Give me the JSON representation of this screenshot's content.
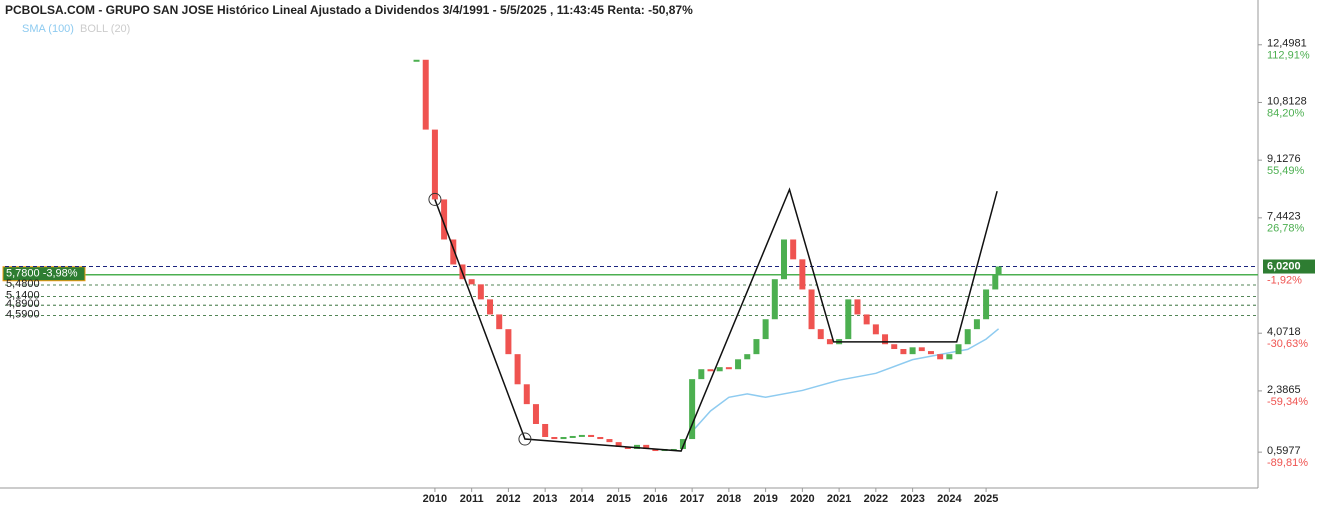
{
  "chart_data": {
    "type": "candlestick",
    "title": "PCBOLSA.COM - GRUPO SAN JOSE Histórico Lineal Ajustado a Dividendos 3/4/1991 - 5/5/2025 , 11:43:45 Renta: -50,87%",
    "indicators": [
      "SMA (100)",
      "BOLL (20)"
    ],
    "xlim": [
      1998.3,
      2032.4
    ],
    "xticks": [
      2010,
      2011,
      2012,
      2013,
      2014,
      2015,
      2016,
      2017,
      2018,
      2019,
      2020,
      2021,
      2022,
      2023,
      2024,
      2025
    ],
    "ylim": [
      -0.45,
      13.66
    ],
    "yticks": [
      {
        "value": 12.4981,
        "label": "12,4981"
      },
      {
        "value": 10.8128,
        "label": "10,8128"
      },
      {
        "value": 9.1276,
        "label": "9,1276"
      },
      {
        "value": 7.4423,
        "label": "7,4423"
      },
      {
        "value": 4.0718,
        "label": "4,0718"
      },
      {
        "value": 2.3865,
        "label": "2,3865"
      },
      {
        "value": 0.5977,
        "label": "0,5977"
      }
    ],
    "percent_labels": [
      "112,91%",
      "84,20%",
      "55,49%",
      "26,78%",
      "-30,63%",
      "-59,34%",
      "-89,81%"
    ],
    "current": {
      "value": 6.02,
      "label": "6,0200",
      "percent": "-1,92%"
    },
    "levels": [
      {
        "value": 5.78,
        "label": "5,7800 -3,98%"
      },
      {
        "value": 5.48,
        "label": "5,4800"
      },
      {
        "value": 5.14,
        "label": "5,1400"
      },
      {
        "value": 4.89,
        "label": "4,8900"
      },
      {
        "value": 4.59,
        "label": "4,5900"
      }
    ],
    "colors": {
      "up": "#4caf50",
      "down": "#ef5350",
      "sma": "#8ecbf0",
      "level": "#1b5e20",
      "current": "#1a237e"
    },
    "x": [
      2009.5,
      2009.75,
      2010.0,
      2010.25,
      2010.5,
      2010.75,
      2011.0,
      2011.25,
      2011.5,
      2011.75,
      2012.0,
      2012.25,
      2012.5,
      2012.75,
      2013.0,
      2013.25,
      2013.5,
      2013.75,
      2014.0,
      2014.25,
      2014.5,
      2014.75,
      2015.0,
      2015.25,
      2015.5,
      2015.75,
      2016.0,
      2016.25,
      2016.5,
      2016.75,
      2017.0,
      2017.25,
      2017.5,
      2017.75,
      2018.0,
      2018.25,
      2018.5,
      2018.75,
      2019.0,
      2019.25,
      2019.5,
      2019.75,
      2020.0,
      2020.25,
      2020.5,
      2020.75,
      2021.0,
      2021.25,
      2021.5,
      2021.75,
      2022.0,
      2022.25,
      2022.5,
      2022.75,
      2023.0,
      2023.25,
      2023.5,
      2023.75,
      2024.0,
      2024.25,
      2024.5,
      2024.75,
      2025.0,
      2025.25,
      2025.34
    ],
    "values": [
      12.06,
      10.02,
      7.98,
      6.81,
      6.08,
      5.65,
      5.5,
      5.06,
      4.62,
      4.19,
      3.46,
      2.58,
      2.0,
      1.42,
      1.04,
      0.98,
      1.04,
      1.07,
      1.1,
      1.04,
      0.98,
      0.89,
      0.75,
      0.69,
      0.81,
      0.69,
      0.63,
      0.69,
      0.69,
      0.98,
      2.73,
      3.02,
      2.96,
      3.08,
      3.02,
      3.31,
      3.46,
      3.9,
      4.48,
      5.65,
      6.81,
      6.23,
      5.35,
      4.19,
      3.9,
      3.75,
      3.9,
      5.06,
      4.62,
      4.33,
      4.04,
      3.75,
      3.61,
      3.46,
      3.66,
      3.55,
      3.46,
      3.31,
      3.46,
      3.75,
      4.19,
      4.48,
      5.35,
      5.79,
      6.02
    ],
    "sma": {
      "x": [
        2017.0,
        2017.5,
        2018.0,
        2018.5,
        2019.0,
        2020.0,
        2021.0,
        2022.0,
        2023.0,
        2024.0,
        2024.5,
        2025.0,
        2025.34
      ],
      "values": [
        1.2,
        1.8,
        2.2,
        2.3,
        2.2,
        2.4,
        2.7,
        2.9,
        3.3,
        3.5,
        3.6,
        3.9,
        4.2
      ]
    },
    "trendline": {
      "x": [
        2010.0,
        2012.45,
        2016.7,
        2019.65,
        2020.85,
        2024.2,
        2025.3
      ],
      "values": [
        7.98,
        0.98,
        0.63,
        8.27,
        3.82,
        3.82,
        8.22
      ]
    }
  }
}
